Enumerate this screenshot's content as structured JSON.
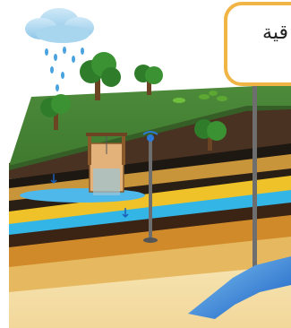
{
  "callout": {
    "label": "قية"
  }
}
